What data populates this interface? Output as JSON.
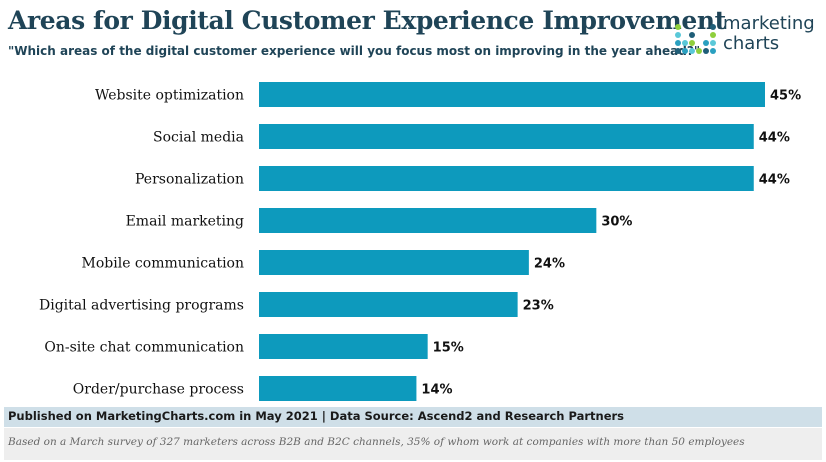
{
  "header": {
    "title": "Areas for Digital Customer Experience Improvement",
    "subtitle": "\"Which areas of the digital customer experience will you focus most on improving in the year ahead?\""
  },
  "logo": {
    "line1": "marketing",
    "line2": "charts",
    "dot_colors": [
      "#1f5e78",
      "#2aa0c0",
      "#5ac8d8",
      "#8fcf3c"
    ]
  },
  "chart_data": {
    "type": "bar",
    "orientation": "horizontal",
    "title": "Areas for Digital Customer Experience Improvement",
    "categories": [
      "Website optimization",
      "Social media",
      "Personalization",
      "Email marketing",
      "Mobile communication",
      "Digital advertising programs",
      "On-site chat communication",
      "Order/purchase process"
    ],
    "values": [
      45,
      44,
      44,
      30,
      24,
      23,
      15,
      14
    ],
    "value_labels": [
      "45%",
      "44%",
      "44%",
      "30%",
      "24%",
      "23%",
      "15%",
      "14%"
    ],
    "unit": "%",
    "xlim": [
      0,
      45
    ],
    "xlabel": "",
    "ylabel": "",
    "bar_color": "#0d9abd",
    "grid": false
  },
  "footer": {
    "source": "Published on MarketingCharts.com in May 2021 | Data Source: Ascend2 and Research Partners",
    "note": "Based on a March survey of 327 marketers across B2B and B2C channels, 35% of whom work at companies with more than 50 employees"
  }
}
